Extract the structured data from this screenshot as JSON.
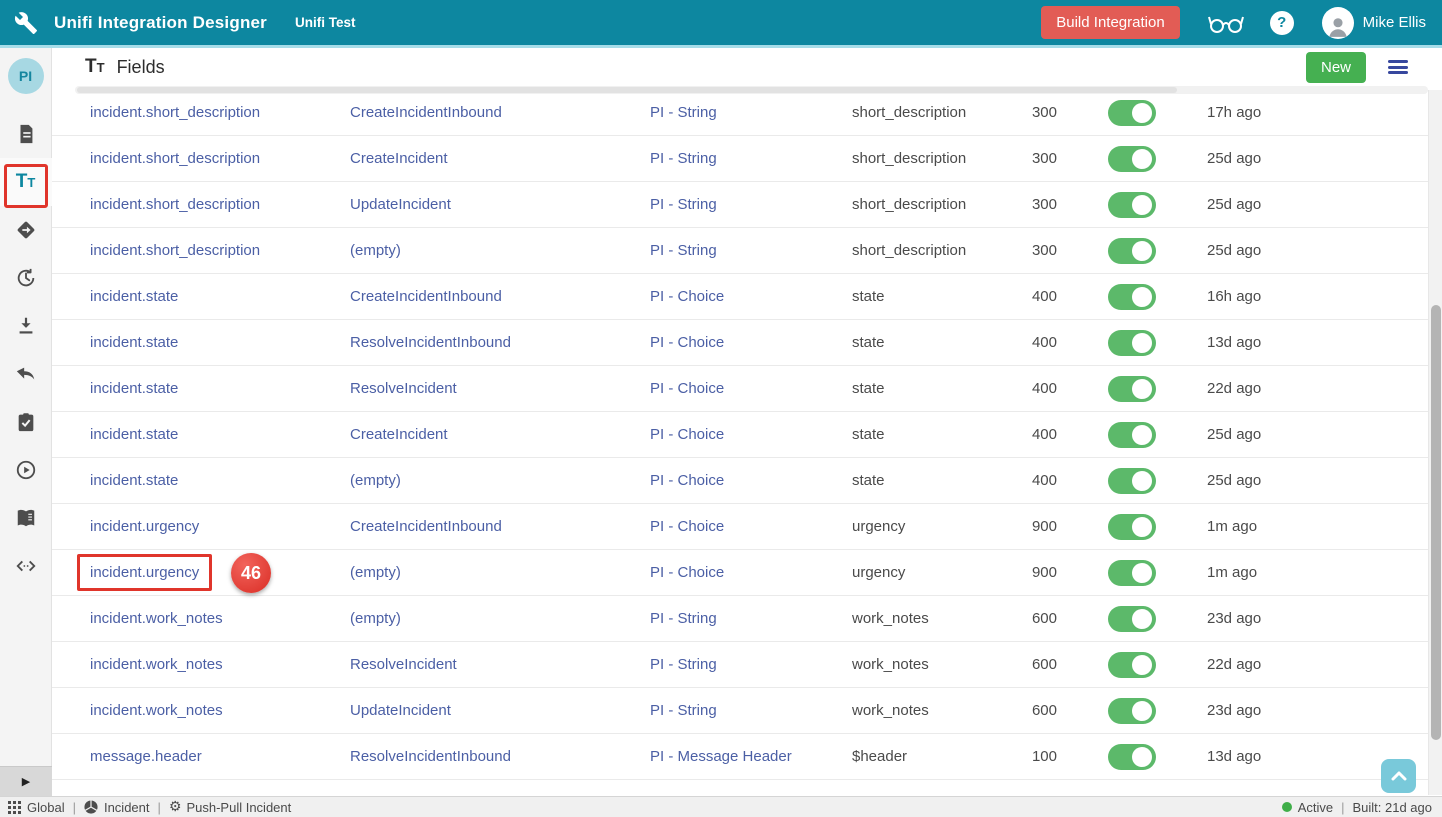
{
  "header": {
    "title": "Unifi Integration Designer",
    "subtitle": "Unifi Test",
    "build_button": "Build Integration",
    "user_name": "Mike Ellis"
  },
  "sidebar": {
    "workspace_label": "PI",
    "items": [
      {
        "icon": "document-icon",
        "selected": false
      },
      {
        "icon": "fields-tt-icon",
        "selected": true
      },
      {
        "icon": "diamond-arrow-icon",
        "selected": false
      },
      {
        "icon": "history-icon",
        "selected": false
      },
      {
        "icon": "download-icon",
        "selected": false
      },
      {
        "icon": "reply-icon",
        "selected": false
      },
      {
        "icon": "clipboard-check-icon",
        "selected": false
      },
      {
        "icon": "play-circle-icon",
        "selected": false
      },
      {
        "icon": "book-icon",
        "selected": false
      },
      {
        "icon": "code-icon",
        "selected": false
      }
    ]
  },
  "icons": {
    "help_glyph": "?",
    "gear_glyph": "⚙",
    "expand_glyph": "▶",
    "tt_large": "T",
    "tt_small": "T"
  },
  "toolbar": {
    "title": "Fields",
    "new_button": "New"
  },
  "table": {
    "rows": [
      {
        "field": "incident.short_description",
        "action": "CreateIncidentInbound",
        "type": "PI - String",
        "column": "short_description",
        "order": "300",
        "enabled": true,
        "updated": "17h ago"
      },
      {
        "field": "incident.short_description",
        "action": "CreateIncident",
        "type": "PI - String",
        "column": "short_description",
        "order": "300",
        "enabled": true,
        "updated": "25d ago"
      },
      {
        "field": "incident.short_description",
        "action": "UpdateIncident",
        "type": "PI - String",
        "column": "short_description",
        "order": "300",
        "enabled": true,
        "updated": "25d ago"
      },
      {
        "field": "incident.short_description",
        "action": "(empty)",
        "type": "PI - String",
        "column": "short_description",
        "order": "300",
        "enabled": true,
        "updated": "25d ago"
      },
      {
        "field": "incident.state",
        "action": "CreateIncidentInbound",
        "type": "PI - Choice",
        "column": "state",
        "order": "400",
        "enabled": true,
        "updated": "16h ago"
      },
      {
        "field": "incident.state",
        "action": "ResolveIncidentInbound",
        "type": "PI - Choice",
        "column": "state",
        "order": "400",
        "enabled": true,
        "updated": "13d ago"
      },
      {
        "field": "incident.state",
        "action": "ResolveIncident",
        "type": "PI - Choice",
        "column": "state",
        "order": "400",
        "enabled": true,
        "updated": "22d ago"
      },
      {
        "field": "incident.state",
        "action": "CreateIncident",
        "type": "PI - Choice",
        "column": "state",
        "order": "400",
        "enabled": true,
        "updated": "25d ago"
      },
      {
        "field": "incident.state",
        "action": "(empty)",
        "type": "PI - Choice",
        "column": "state",
        "order": "400",
        "enabled": true,
        "updated": "25d ago"
      },
      {
        "field": "incident.urgency",
        "action": "CreateIncidentInbound",
        "type": "PI - Choice",
        "column": "urgency",
        "order": "900",
        "enabled": true,
        "updated": "1m ago"
      },
      {
        "field": "incident.urgency",
        "action": "(empty)",
        "type": "PI - Choice",
        "column": "urgency",
        "order": "900",
        "enabled": true,
        "updated": "1m ago"
      },
      {
        "field": "incident.work_notes",
        "action": "(empty)",
        "type": "PI - String",
        "column": "work_notes",
        "order": "600",
        "enabled": true,
        "updated": "23d ago"
      },
      {
        "field": "incident.work_notes",
        "action": "ResolveIncident",
        "type": "PI - String",
        "column": "work_notes",
        "order": "600",
        "enabled": true,
        "updated": "22d ago"
      },
      {
        "field": "incident.work_notes",
        "action": "UpdateIncident",
        "type": "PI - String",
        "column": "work_notes",
        "order": "600",
        "enabled": true,
        "updated": "23d ago"
      },
      {
        "field": "message.header",
        "action": "ResolveIncidentInbound",
        "type": "PI - Message Header",
        "column": "$header",
        "order": "100",
        "enabled": true,
        "updated": "13d ago"
      }
    ]
  },
  "annotations": {
    "step_number": "46",
    "highlighted_row": 10
  },
  "statusbar": {
    "scope": "Global",
    "app": "Incident",
    "integration": "Push-Pull Incident",
    "status": "Active",
    "built": "Built: 21d ago",
    "separator": "|"
  },
  "colors": {
    "header_teal": "#0d87a0",
    "accent_light": "#a6dde9",
    "link_blue": "#4b5fa5",
    "toggle_green": "#5cb96a",
    "new_button_green": "#45b051",
    "build_button_red": "#e25c55",
    "annotation_red": "#e0352b",
    "active_green": "#3fae49"
  }
}
